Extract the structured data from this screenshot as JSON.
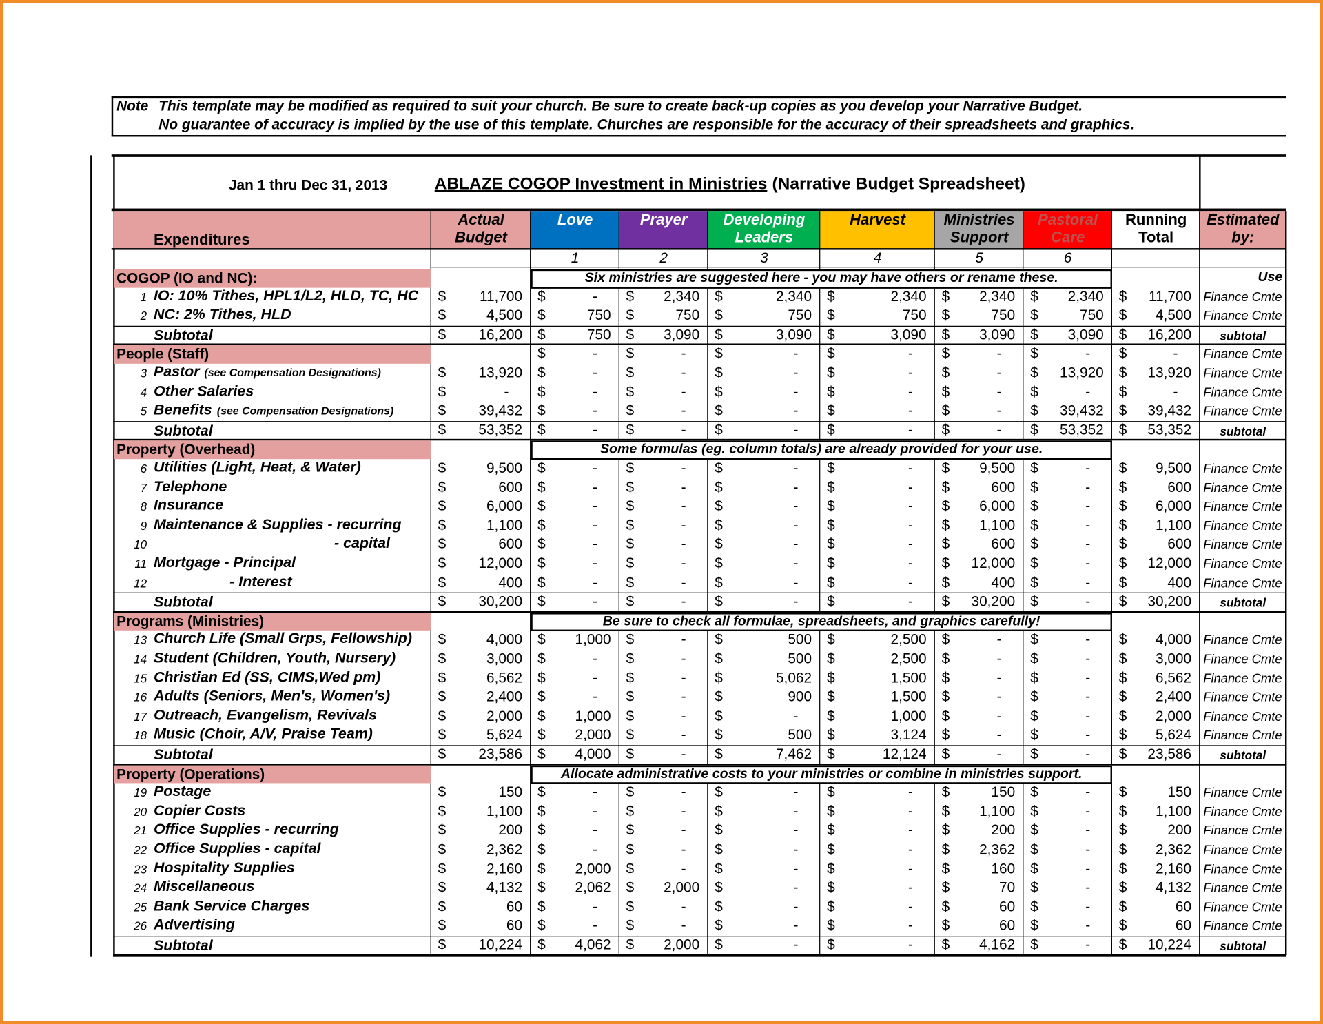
{
  "note": {
    "label": "Note",
    "lines": [
      "This template may be modified as required to suit your church.  Be sure to create back-up copies as you develop your Narrative Budget.",
      "No guarantee of accuracy is implied by the use of this template.  Churches are responsible for the accuracy of their spreadsheets and graphics."
    ]
  },
  "header": {
    "date": "Jan 1 thru Dec 31, 2013",
    "title": "ABLAZE COGOP  Investment in Ministries",
    "subtitle": "(Narrative Budget Spreadsheet)"
  },
  "currency": "$",
  "columns": [
    {
      "lines": [
        "Expenditures"
      ],
      "color": "#e3a09f",
      "text_color": "#000000"
    },
    {
      "lines": [
        "Actual",
        "Budget"
      ],
      "color": "#e3a09f",
      "text_color": "#000000"
    },
    {
      "lines": [
        "Love"
      ],
      "number": "1",
      "color": "#0070c0",
      "text_color": "#ffffff"
    },
    {
      "lines": [
        "Prayer"
      ],
      "number": "2",
      "color": "#7030a0",
      "text_color": "#ffffff"
    },
    {
      "lines": [
        "Developing",
        "Leaders"
      ],
      "number": "3",
      "color": "#00b050",
      "text_color": "#ffffff"
    },
    {
      "lines": [
        "Harvest"
      ],
      "number": "4",
      "color": "#ffc000",
      "text_color": "#000000"
    },
    {
      "lines": [
        "Ministries",
        "Support"
      ],
      "number": "5",
      "color": "#a6a6a6",
      "text_color": "#000000"
    },
    {
      "lines": [
        "Pastoral",
        "Care"
      ],
      "number": "6",
      "color": "#ff0000",
      "text_color": "#c0504d"
    },
    {
      "lines": [
        "Running",
        "Total"
      ],
      "color": "#ffffff",
      "text_color": "#000000"
    },
    {
      "lines": [
        "Estimated",
        "by:"
      ],
      "color": "#e3a09f",
      "text_color": "#000000"
    }
  ],
  "rows": [
    {
      "kind": "section",
      "label": "COGOP (IO and NC):",
      "banner": "Six ministries are suggested here - you may have others or rename these.",
      "est": "Use"
    },
    {
      "kind": "item",
      "num": "1",
      "label": "IO: 10% Tithes, HPL1/L2, HLD, TC, HC",
      "values": [
        "11,700",
        "-",
        "2,340",
        "2,340",
        "2,340",
        "2,340",
        "2,340",
        "11,700"
      ],
      "est": "Finance Cmte"
    },
    {
      "kind": "item",
      "num": "2",
      "label": "NC: 2% Tithes, HLD",
      "values": [
        "4,500",
        "750",
        "750",
        "750",
        "750",
        "750",
        "750",
        "4,500"
      ],
      "est": "Finance Cmte"
    },
    {
      "kind": "subtotal",
      "label": "Subtotal",
      "values": [
        "16,200",
        "750",
        "3,090",
        "3,090",
        "3,090",
        "3,090",
        "3,090",
        "16,200"
      ],
      "est": "subtotal"
    },
    {
      "kind": "section",
      "label": "People (Staff)",
      "values": [
        null,
        "-",
        "-",
        "-",
        "-",
        "-",
        "-",
        "-"
      ],
      "est": "Finance Cmte"
    },
    {
      "kind": "item",
      "num": "3",
      "label": "Pastor",
      "note": "(see Compensation Designations)",
      "values": [
        "13,920",
        "-",
        "-",
        "-",
        "-",
        "-",
        "13,920",
        "13,920"
      ],
      "est": "Finance Cmte"
    },
    {
      "kind": "item",
      "num": "4",
      "label": "Other Salaries",
      "values": [
        "-",
        "-",
        "-",
        "-",
        "-",
        "-",
        "-",
        "-"
      ],
      "est": "Finance Cmte"
    },
    {
      "kind": "item",
      "num": "5",
      "label": "Benefits",
      "note": "(see Compensation Designations)",
      "values": [
        "39,432",
        "-",
        "-",
        "-",
        "-",
        "-",
        "39,432",
        "39,432"
      ],
      "est": "Finance Cmte"
    },
    {
      "kind": "subtotal",
      "label": "Subtotal",
      "values": [
        "53,352",
        "-",
        "-",
        "-",
        "-",
        "-",
        "53,352",
        "53,352"
      ],
      "est": "subtotal"
    },
    {
      "kind": "section",
      "label": "Property (Overhead)",
      "banner": "Some formulas (eg. column totals) are already provided for your use."
    },
    {
      "kind": "item",
      "num": "6",
      "label": "Utilities (Light, Heat, & Water)",
      "values": [
        "9,500",
        "-",
        "-",
        "-",
        "-",
        "9,500",
        "-",
        "9,500"
      ],
      "est": "Finance Cmte"
    },
    {
      "kind": "item",
      "num": "7",
      "label": "Telephone",
      "values": [
        "600",
        "-",
        "-",
        "-",
        "-",
        "600",
        "-",
        "600"
      ],
      "est": "Finance Cmte"
    },
    {
      "kind": "item",
      "num": "8",
      "label": "Insurance",
      "values": [
        "6,000",
        "-",
        "-",
        "-",
        "-",
        "6,000",
        "-",
        "6,000"
      ],
      "est": "Finance Cmte"
    },
    {
      "kind": "item",
      "num": "9",
      "label": "Maintenance & Supplies - recurring",
      "values": [
        "1,100",
        "-",
        "-",
        "-",
        "-",
        "1,100",
        "-",
        "1,100"
      ],
      "est": "Finance Cmte"
    },
    {
      "kind": "item",
      "num": "10",
      "label": "- capital",
      "values": [
        "600",
        "-",
        "-",
        "-",
        "-",
        "600",
        "-",
        "600"
      ],
      "est": "Finance Cmte"
    },
    {
      "kind": "item",
      "num": "11",
      "label": "Mortgage  - Principal",
      "values": [
        "12,000",
        "-",
        "-",
        "-",
        "-",
        "12,000",
        "-",
        "12,000"
      ],
      "est": "Finance Cmte"
    },
    {
      "kind": "item",
      "num": "12",
      "label": "- Interest",
      "values": [
        "400",
        "-",
        "-",
        "-",
        "-",
        "400",
        "-",
        "400"
      ],
      "est": "Finance Cmte"
    },
    {
      "kind": "subtotal",
      "label": "Subtotal",
      "values": [
        "30,200",
        "-",
        "-",
        "-",
        "-",
        "30,200",
        "-",
        "30,200"
      ],
      "est": "subtotal"
    },
    {
      "kind": "section",
      "label": "Programs (Ministries)",
      "banner": "Be sure to check all formulae, spreadsheets, and graphics carefully!"
    },
    {
      "kind": "item",
      "num": "13",
      "label": "Church Life (Small Grps, Fellowship)",
      "values": [
        "4,000",
        "1,000",
        "-",
        "500",
        "2,500",
        "-",
        "-",
        "4,000"
      ],
      "est": "Finance Cmte"
    },
    {
      "kind": "item",
      "num": "14",
      "label": "Student (Children, Youth, Nursery)",
      "values": [
        "3,000",
        "-",
        "-",
        "500",
        "2,500",
        "-",
        "-",
        "3,000"
      ],
      "est": "Finance Cmte"
    },
    {
      "kind": "item",
      "num": "15",
      "label": "Christian Ed (SS, CIMS,Wed pm)",
      "values": [
        "6,562",
        "-",
        "-",
        "5,062",
        "1,500",
        "-",
        "-",
        "6,562"
      ],
      "est": "Finance Cmte"
    },
    {
      "kind": "item",
      "num": "16",
      "label": "Adults (Seniors, Men's, Women's)",
      "values": [
        "2,400",
        "-",
        "-",
        "900",
        "1,500",
        "-",
        "-",
        "2,400"
      ],
      "est": "Finance Cmte"
    },
    {
      "kind": "item",
      "num": "17",
      "label": "Outreach, Evangelism, Revivals",
      "values": [
        "2,000",
        "1,000",
        "-",
        "-",
        "1,000",
        "-",
        "-",
        "2,000"
      ],
      "est": "Finance Cmte"
    },
    {
      "kind": "item",
      "num": "18",
      "label": "Music (Choir, A/V, Praise Team)",
      "values": [
        "5,624",
        "2,000",
        "-",
        "500",
        "3,124",
        "-",
        "-",
        "5,624"
      ],
      "est": "Finance Cmte"
    },
    {
      "kind": "subtotal",
      "label": "Subtotal",
      "values": [
        "23,586",
        "4,000",
        "-",
        "7,462",
        "12,124",
        "-",
        "-",
        "23,586"
      ],
      "est": "subtotal"
    },
    {
      "kind": "section",
      "label": "Property (Operations)",
      "banner": "Allocate administrative costs to your ministries or combine in ministries support."
    },
    {
      "kind": "item",
      "num": "19",
      "label": "Postage",
      "values": [
        "150",
        "-",
        "-",
        "-",
        "-",
        "150",
        "-",
        "150"
      ],
      "est": "Finance Cmte"
    },
    {
      "kind": "item",
      "num": "20",
      "label": "Copier Costs",
      "values": [
        "1,100",
        "-",
        "-",
        "-",
        "-",
        "1,100",
        "-",
        "1,100"
      ],
      "est": "Finance Cmte"
    },
    {
      "kind": "item",
      "num": "21",
      "label": "Office Supplies - recurring",
      "values": [
        "200",
        "-",
        "-",
        "-",
        "-",
        "200",
        "-",
        "200"
      ],
      "est": "Finance Cmte"
    },
    {
      "kind": "item",
      "num": "22",
      "label": "Office Supplies - capital",
      "values": [
        "2,362",
        "-",
        "-",
        "-",
        "-",
        "2,362",
        "-",
        "2,362"
      ],
      "est": "Finance Cmte"
    },
    {
      "kind": "item",
      "num": "23",
      "label": "Hospitality Supplies",
      "values": [
        "2,160",
        "2,000",
        "-",
        "-",
        "-",
        "160",
        "-",
        "2,160"
      ],
      "est": "Finance Cmte"
    },
    {
      "kind": "item",
      "num": "24",
      "label": "Miscellaneous",
      "values": [
        "4,132",
        "2,062",
        "2,000",
        "-",
        "-",
        "70",
        "-",
        "4,132"
      ],
      "est": "Finance Cmte"
    },
    {
      "kind": "item",
      "num": "25",
      "label": "Bank Service Charges",
      "values": [
        "60",
        "-",
        "-",
        "-",
        "-",
        "60",
        "-",
        "60"
      ],
      "est": "Finance Cmte"
    },
    {
      "kind": "item",
      "num": "26",
      "label": "Advertising",
      "values": [
        "60",
        "-",
        "-",
        "-",
        "-",
        "60",
        "-",
        "60"
      ],
      "est": "Finance Cmte"
    },
    {
      "kind": "subtotal",
      "label": "Subtotal",
      "values": [
        "10,224",
        "4,062",
        "2,000",
        "-",
        "-",
        "4,162",
        "-",
        "10,224"
      ],
      "est": "subtotal"
    }
  ]
}
